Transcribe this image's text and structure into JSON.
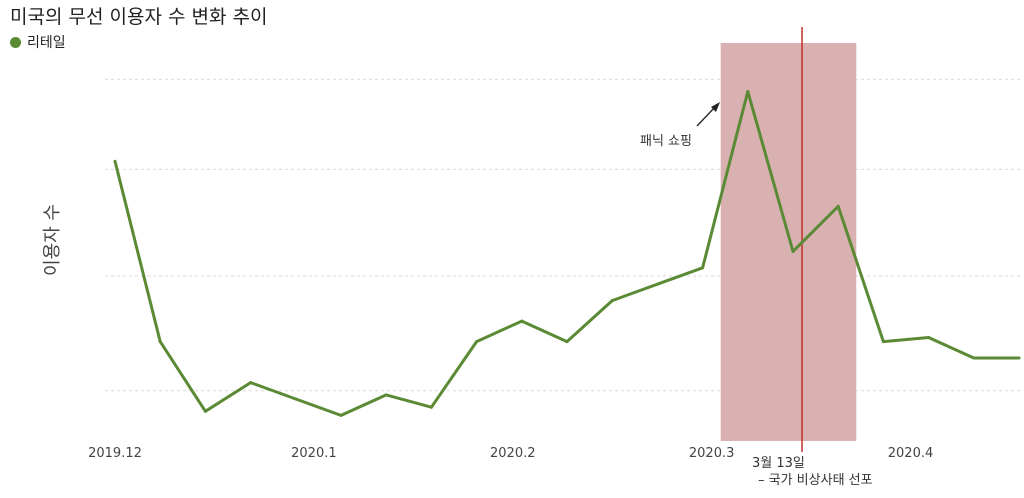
{
  "header": {
    "title": "미국의 무선 이용자 수 변화 추이",
    "legend_label": "리테일"
  },
  "colors": {
    "line": "#5b8a35",
    "legend_dot": "#5b8a35",
    "highlight": "#d4a3a3",
    "event_line": "#c0302a",
    "grid": "#d9d9d9"
  },
  "chart_data": {
    "type": "line",
    "ylabel": "이용자 수",
    "x_ticks": [
      "2019.12",
      "2020.1",
      "2020.2",
      "2020.3",
      "2020.4"
    ],
    "x_tick_index": [
      0,
      4.4,
      8.8,
      13.2,
      17.6
    ],
    "series": [
      {
        "name": "리테일",
        "x_index": [
          0,
          1,
          2,
          3,
          4,
          5,
          6,
          7,
          8,
          9,
          10,
          11,
          12,
          13,
          14,
          15,
          16,
          17,
          18,
          19,
          20
        ],
        "values": [
          68,
          24,
          7,
          14,
          10,
          6,
          11,
          8,
          24,
          29,
          24,
          34,
          38,
          42,
          85,
          46,
          57,
          24,
          25,
          20,
          20
        ]
      }
    ],
    "ylim": [
      0,
      100
    ],
    "gridlines_y": [
      12,
      40,
      66,
      88
    ],
    "highlight_span": [
      13.4,
      16.4
    ],
    "event_line_at": 15.2,
    "annotations": {
      "panic_label": "패닉 쇼핑",
      "event_date": "3월 13일",
      "event_text": "– 국가 비상사태 선포"
    }
  }
}
